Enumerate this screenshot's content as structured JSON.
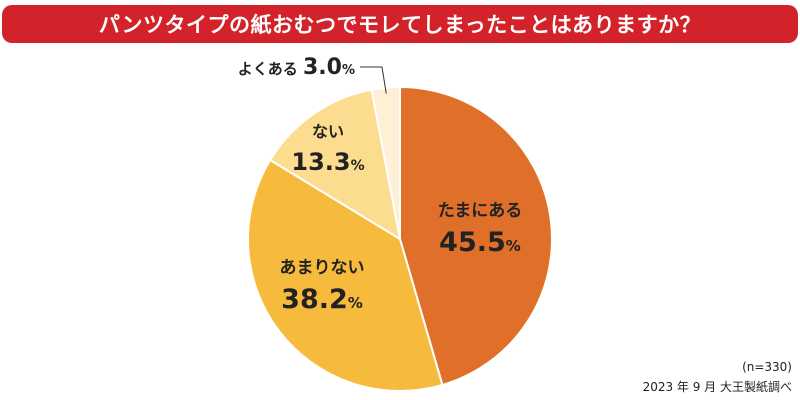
{
  "title": "パンツタイプの紙おむつでモレてしまったことはありますか？",
  "chart_data": {
    "type": "pie",
    "start": "12 o'clock",
    "direction": "clockwise",
    "slices": [
      {
        "label": "たまにある",
        "value": 45.5,
        "value_text": "45.5",
        "color": "#df6f29"
      },
      {
        "label": "あまりない",
        "value": 38.2,
        "value_text": "38.2",
        "color": "#f6ba3c"
      },
      {
        "label": "ない",
        "value": 13.3,
        "value_text": "13.3",
        "color": "#fcdc8e"
      },
      {
        "label": "よくある",
        "value": 3.0,
        "value_text": "3.0",
        "color": "#fdf0d6"
      }
    ],
    "unit": "%"
  },
  "footnote": {
    "sample": "(n=330)",
    "source": "2023 年 9 月 大王製紙調べ"
  }
}
